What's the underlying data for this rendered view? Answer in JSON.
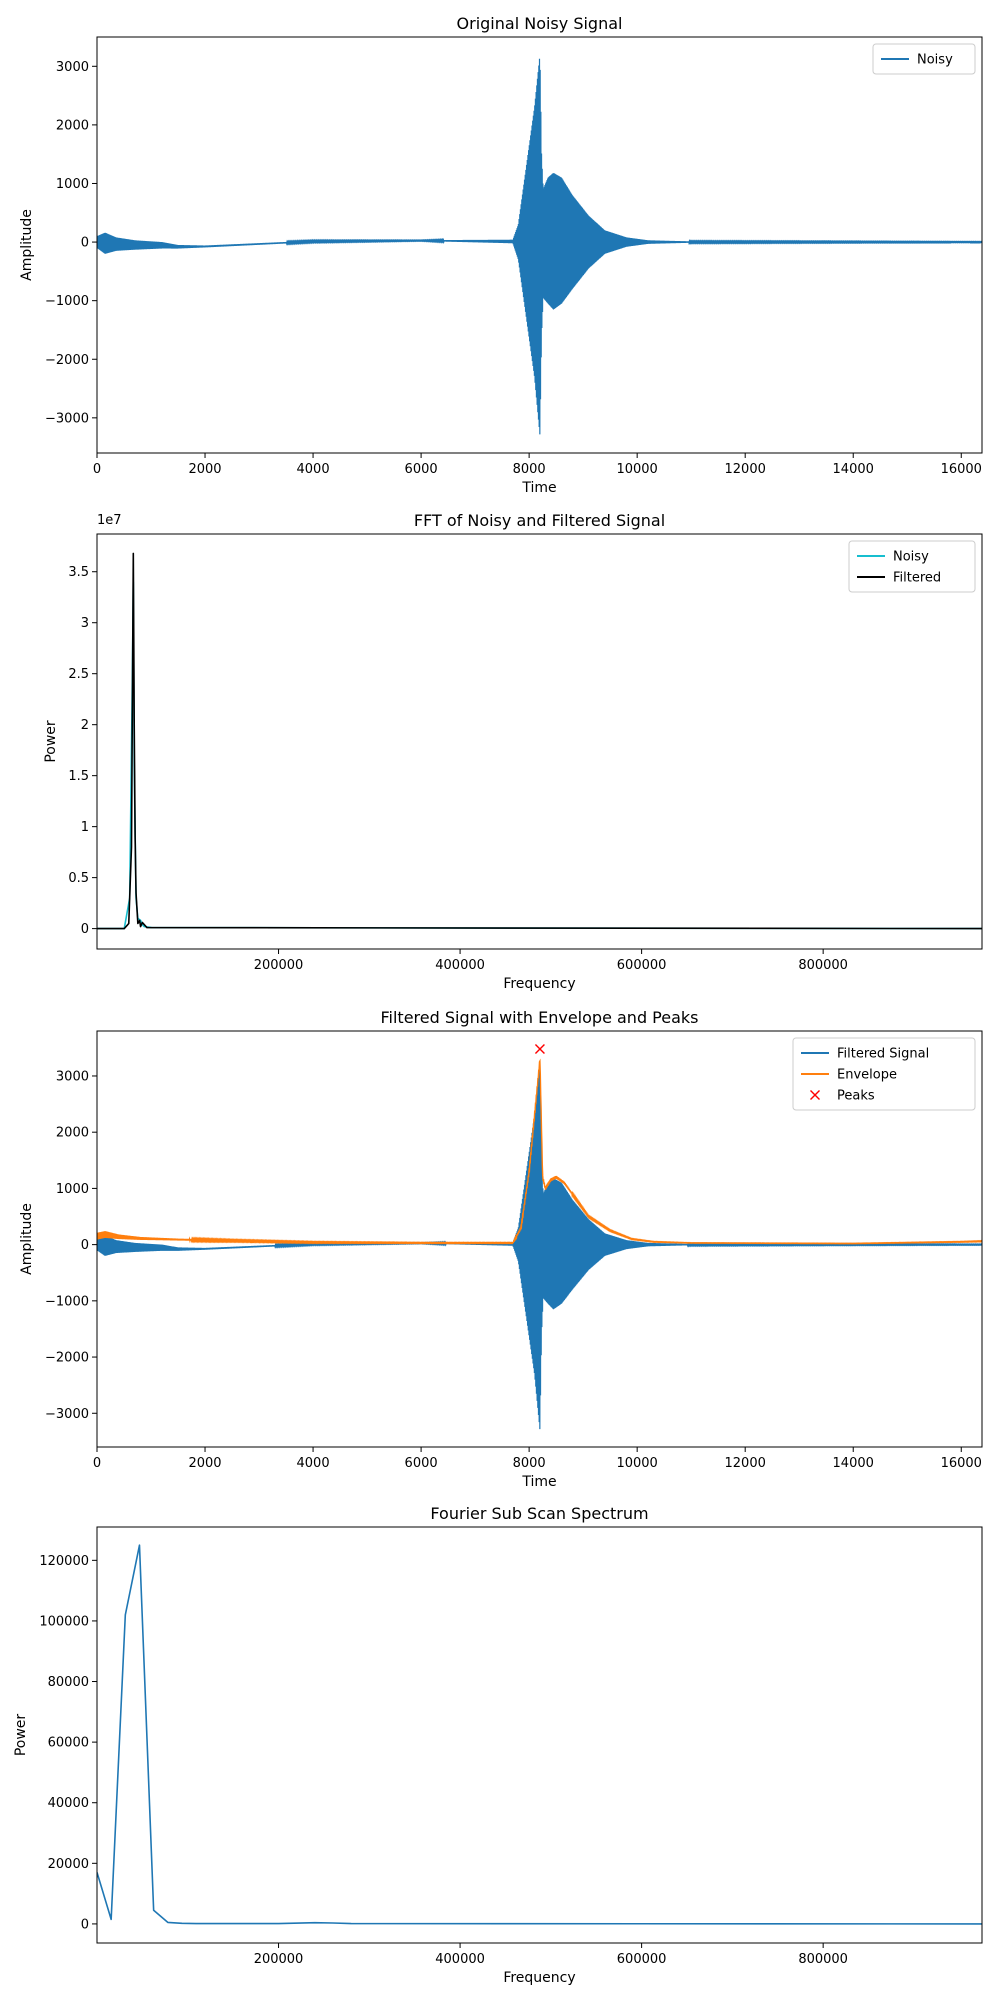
{
  "chart_data": [
    {
      "type": "line",
      "title": "Original Noisy Signal",
      "xlabel": "Time",
      "ylabel": "Amplitude",
      "xlim": [
        0,
        16384
      ],
      "ylim": [
        -3600,
        3500
      ],
      "xticks": [
        0,
        2000,
        4000,
        6000,
        8000,
        10000,
        12000,
        14000,
        16000
      ],
      "yticks": [
        -3000,
        -2000,
        -1000,
        0,
        1000,
        2000,
        3000
      ],
      "legend_position": "top-right",
      "series": [
        {
          "name": "Noisy",
          "color": "#1f77b4",
          "kind": "oscillation",
          "envelope_x": [
            0,
            150,
            350,
            700,
            1200,
            1500,
            2000,
            4000,
            6000,
            7700,
            7800,
            7950,
            8100,
            8200,
            8230,
            8260,
            8350,
            8450,
            8600,
            8800,
            9100,
            9400,
            9800,
            10200,
            11000,
            16384
          ],
          "envelope_upper": [
            100,
            160,
            80,
            30,
            0,
            -50,
            -60,
            20,
            30,
            40,
            300,
            1300,
            2300,
            3200,
            1500,
            900,
            1100,
            1180,
            1100,
            800,
            450,
            200,
            80,
            30,
            10,
            5
          ],
          "envelope_lower": [
            -100,
            -200,
            -150,
            -130,
            -110,
            -110,
            -90,
            0,
            20,
            -20,
            -300,
            -1300,
            -2300,
            -3300,
            -1600,
            -950,
            -1050,
            -1150,
            -1050,
            -800,
            -450,
            -200,
            -80,
            -30,
            -10,
            -5
          ]
        }
      ]
    },
    {
      "type": "line",
      "title": "FFT of Noisy and Filtered Signal",
      "xlabel": "Frequency",
      "ylabel": "Power",
      "y_scale_note": "1e7",
      "xlim": [
        0,
        975000
      ],
      "ylim": [
        -0.2,
        3.87
      ],
      "xticks": [
        200000,
        400000,
        600000,
        800000
      ],
      "yticks": [
        0.0,
        0.5,
        1.0,
        1.5,
        2.0,
        2.5,
        3.0,
        3.5
      ],
      "legend_position": "top-right",
      "series": [
        {
          "name": "Noisy",
          "color": "#17becf",
          "x": [
            0,
            30000,
            36000,
            39000,
            40000,
            41000,
            43000,
            45000,
            48000,
            50000,
            52000,
            60000,
            975000
          ],
          "y": [
            0.0,
            0.0,
            0.3,
            2.5,
            3.4,
            1.6,
            0.3,
            0.1,
            0.08,
            0.04,
            0.02,
            0.01,
            0.0
          ]
        },
        {
          "name": "Filtered",
          "color": "#000000",
          "x": [
            0,
            30000,
            35000,
            38000,
            40000,
            41000,
            42000,
            43000,
            45000,
            47000,
            48000,
            50000,
            55000,
            975000
          ],
          "y": [
            0.0,
            0.0,
            0.05,
            0.8,
            3.68,
            2.0,
            0.9,
            0.35,
            0.05,
            0.08,
            0.02,
            0.06,
            0.01,
            0.0
          ]
        }
      ]
    },
    {
      "type": "line",
      "title": "Filtered Signal with Envelope and Peaks",
      "xlabel": "Time",
      "ylabel": "Amplitude",
      "xlim": [
        0,
        16384
      ],
      "ylim": [
        -3600,
        3800
      ],
      "xticks": [
        0,
        2000,
        4000,
        6000,
        8000,
        10000,
        12000,
        14000,
        16000
      ],
      "yticks": [
        -3000,
        -2000,
        -1000,
        0,
        1000,
        2000,
        3000
      ],
      "legend_position": "top-right",
      "series": [
        {
          "name": "Filtered Signal",
          "color": "#1f77b4",
          "kind": "oscillation",
          "envelope_x": [
            0,
            150,
            350,
            700,
            1200,
            1500,
            2000,
            4000,
            6000,
            7700,
            7800,
            7950,
            8100,
            8200,
            8230,
            8260,
            8350,
            8450,
            8600,
            8800,
            9100,
            9400,
            9800,
            10200,
            11000,
            16384
          ],
          "envelope_upper": [
            100,
            160,
            80,
            30,
            0,
            -50,
            -60,
            20,
            30,
            40,
            300,
            1300,
            2300,
            3200,
            1500,
            900,
            1100,
            1180,
            1100,
            800,
            450,
            200,
            80,
            30,
            10,
            5
          ],
          "envelope_lower": [
            -100,
            -200,
            -150,
            -130,
            -110,
            -110,
            -90,
            0,
            20,
            -20,
            -300,
            -1300,
            -2300,
            -3300,
            -1600,
            -950,
            -1050,
            -1150,
            -1050,
            -800,
            -450,
            -200,
            -80,
            -30,
            -10,
            -5
          ]
        },
        {
          "name": "Envelope",
          "color": "#ff7f0e",
          "kind": "band",
          "x": [
            0,
            150,
            400,
            800,
            1500,
            2500,
            4000,
            6000,
            7700,
            7850,
            8000,
            8100,
            8200,
            8250,
            8300,
            8400,
            8500,
            8650,
            8800,
            9100,
            9500,
            9900,
            10300,
            11000,
            14000,
            16000,
            16384
          ],
          "y": [
            150,
            180,
            140,
            110,
            90,
            70,
            40,
            30,
            30,
            300,
            1300,
            2300,
            3300,
            1200,
            1000,
            1150,
            1200,
            1100,
            900,
            500,
            250,
            100,
            50,
            30,
            20,
            50,
            60
          ],
          "jitter": [
            120,
            120,
            80,
            50,
            30,
            20,
            15,
            10,
            10,
            60,
            80,
            80,
            60,
            60,
            60,
            50,
            50,
            40,
            30,
            20,
            15,
            10,
            8,
            5,
            5,
            8,
            10
          ]
        },
        {
          "name": "Peaks",
          "color": "#ff0000",
          "kind": "markers",
          "marker": "x",
          "x": [
            8200
          ],
          "y": [
            3480
          ]
        }
      ]
    },
    {
      "type": "line",
      "title": "Fourier Sub Scan Spectrum",
      "xlabel": "Frequency",
      "ylabel": "Power",
      "xlim": [
        0,
        975000
      ],
      "ylim": [
        -6300,
        131000
      ],
      "xticks": [
        200000,
        400000,
        600000,
        800000
      ],
      "yticks": [
        0,
        20000,
        40000,
        60000,
        80000,
        100000,
        120000
      ],
      "series": [
        {
          "name": "",
          "color": "#1f77b4",
          "x": [
            0,
            15600,
            31200,
            46800,
            62400,
            78000,
            93600,
            109200,
            124800,
            200000,
            240000,
            260000,
            280000,
            975000
          ],
          "y": [
            17000,
            1500,
            102000,
            125000,
            4500,
            500,
            200,
            100,
            100,
            100,
            400,
            300,
            100,
            0
          ]
        }
      ]
    }
  ]
}
